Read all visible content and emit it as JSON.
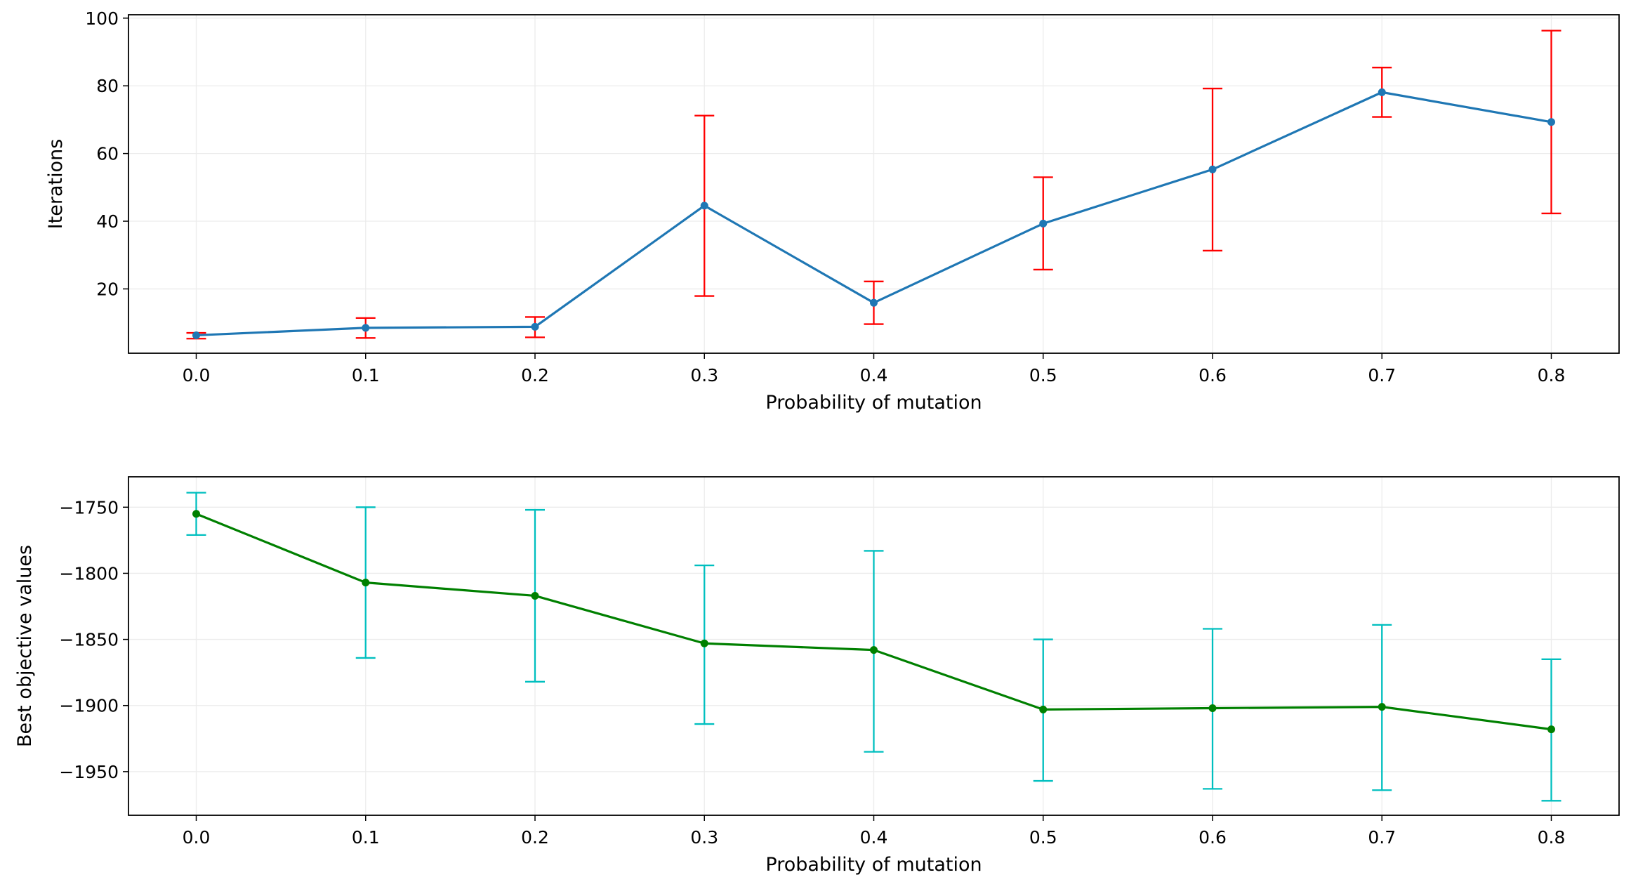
{
  "chart_data": [
    {
      "type": "line",
      "xlabel": "Probability of mutation",
      "ylabel": "Iterations",
      "x": [
        0.0,
        0.1,
        0.2,
        0.3,
        0.4,
        0.5,
        0.6,
        0.7,
        0.8
      ],
      "x_tick_labels": [
        "0.0",
        "0.1",
        "0.2",
        "0.3",
        "0.4",
        "0.5",
        "0.6",
        "0.7",
        "0.8"
      ],
      "xlim": [
        -0.04,
        0.84
      ],
      "ylim": [
        1,
        101
      ],
      "y_ticks": [
        20,
        40,
        60,
        80,
        100
      ],
      "y_tick_labels": [
        "20",
        "40",
        "60",
        "80",
        "100"
      ],
      "grid": true,
      "series": [
        {
          "values": [
            6.3,
            8.5,
            8.8,
            44.6,
            15.9,
            39.3,
            55.3,
            78.1,
            69.3
          ],
          "error_low": [
            5.3,
            5.5,
            5.7,
            17.9,
            9.6,
            25.7,
            31.3,
            70.8,
            42.3
          ],
          "error_high": [
            7.0,
            11.4,
            11.7,
            71.2,
            22.2,
            53.0,
            79.2,
            85.4,
            96.3
          ],
          "line_color": "#1f77b4",
          "error_color": "#ff0000"
        }
      ]
    },
    {
      "type": "line",
      "xlabel": "Probability of mutation",
      "ylabel": "Best objective values",
      "x": [
        0.0,
        0.1,
        0.2,
        0.3,
        0.4,
        0.5,
        0.6,
        0.7,
        0.8
      ],
      "x_tick_labels": [
        "0.0",
        "0.1",
        "0.2",
        "0.3",
        "0.4",
        "0.5",
        "0.6",
        "0.7",
        "0.8"
      ],
      "xlim": [
        -0.04,
        0.84
      ],
      "ylim": [
        -1983,
        -1727
      ],
      "y_ticks": [
        -1750,
        -1800,
        -1850,
        -1900,
        -1950
      ],
      "y_tick_labels": [
        "−1750",
        "−1800",
        "−1850",
        "−1900",
        "−1950"
      ],
      "grid": true,
      "series": [
        {
          "values": [
            -1755,
            -1807,
            -1817,
            -1853,
            -1858,
            -1903,
            -1902,
            -1901,
            -1918
          ],
          "error_low": [
            -1771,
            -1864,
            -1882,
            -1914,
            -1935,
            -1957,
            -1963,
            -1964,
            -1972
          ],
          "error_high": [
            -1739,
            -1750,
            -1752,
            -1794,
            -1783,
            -1850,
            -1842,
            -1839,
            -1865
          ],
          "line_color": "#008000",
          "error_color": "#00bfbf"
        }
      ]
    }
  ]
}
